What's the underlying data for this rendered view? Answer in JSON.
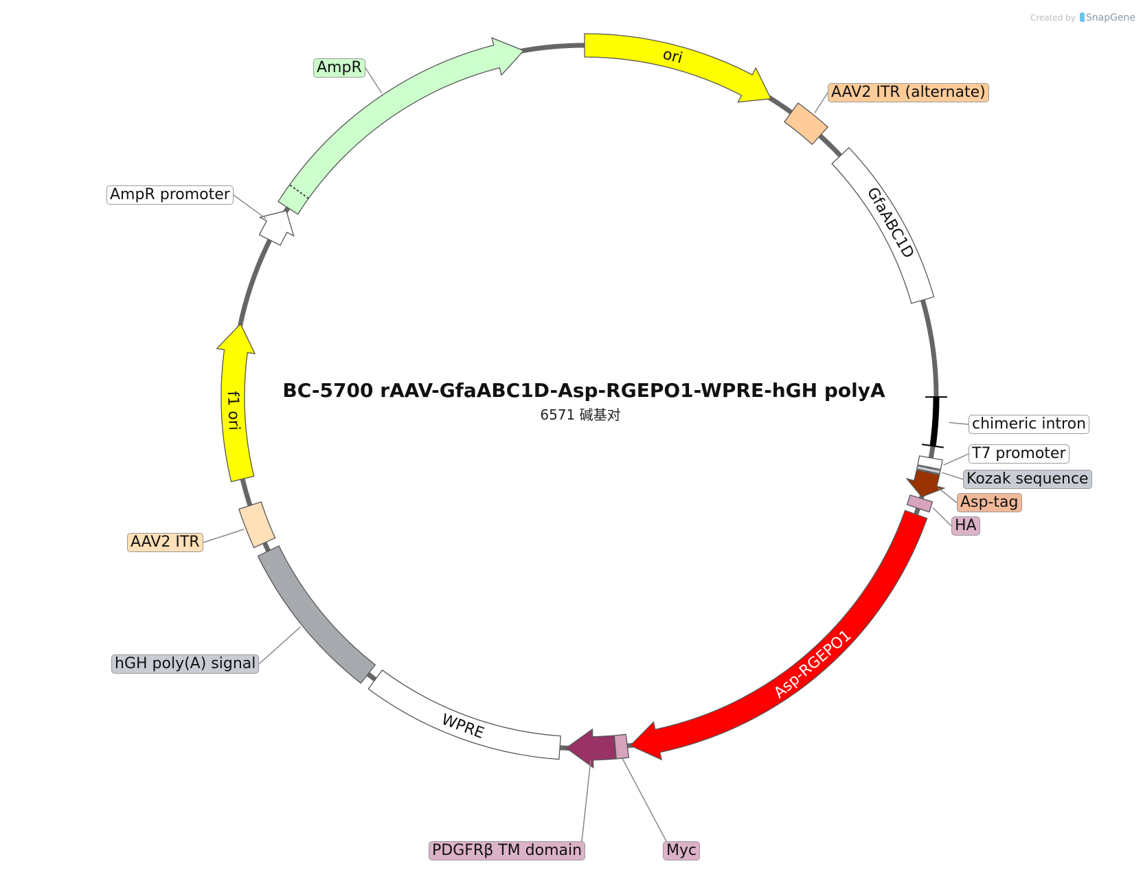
{
  "title": "BC-5700 rAAV-GfaABC1D-Asp-RGEPO1-WPRE-hGH polyA",
  "subtitle": "6571 碱基对",
  "watermark": {
    "prefix": "Created by",
    "brand": "SnapGene"
  },
  "chart_data": {
    "type": "plasmid-map",
    "total_bp": 6571,
    "features": [
      {
        "name": "ori",
        "start": 0,
        "end": 584,
        "color": "#ffff00",
        "arrow": "cw",
        "inner_label": true
      },
      {
        "name": "AAV2 ITR (alternate)",
        "start": 657,
        "end": 767,
        "color": "#ffcc99",
        "arrow": "none"
      },
      {
        "name": "GfaABC1D",
        "start": 852,
        "end": 1351,
        "color": "#ffffff",
        "arrow": "none",
        "inner_label": true
      },
      {
        "name": "chimeric intron",
        "start": 1643,
        "end": 1789,
        "color": "#000000",
        "arrow": "none",
        "thin": true
      },
      {
        "name": "T7 promoter",
        "start": 1825,
        "end": 1853,
        "color": "#ffffff",
        "arrow": "none"
      },
      {
        "name": "Kozak sequence",
        "start": 1856,
        "end": 1866,
        "color": "#c8ccd4",
        "arrow": "none"
      },
      {
        "name": "Asp-tag",
        "start": 1869,
        "end": 1944,
        "color": "#993300",
        "arrow": "cw"
      },
      {
        "name": "HA",
        "start": 1949,
        "end": 1980,
        "color": "#d7a3bd",
        "arrow": "none"
      },
      {
        "name": "Asp-RGEPO1",
        "start": 1999,
        "end": 3149,
        "color": "#ff0000",
        "arrow": "cw",
        "inner_label": true,
        "text_color": "#ffffff"
      },
      {
        "name": "Myc",
        "start": 3158,
        "end": 3194,
        "color": "#d7a3bd",
        "arrow": "none"
      },
      {
        "name": "PDGFRβ TM domain",
        "start": 3196,
        "end": 3340,
        "color": "#993366",
        "arrow": "cw"
      },
      {
        "name": "WPRE",
        "start": 3359,
        "end": 3952,
        "color": "#ffffff",
        "arrow": "none",
        "inner_label": true
      },
      {
        "name": "hGH poly(A) signal",
        "start": 3979,
        "end": 4454,
        "color": "#a6a9ad",
        "arrow": "none"
      },
      {
        "name": "AAV2 ITR",
        "start": 4481,
        "end": 4600,
        "color": "#ffe0b8",
        "arrow": "none"
      },
      {
        "name": "f1 ori",
        "start": 4682,
        "end": 5147,
        "color": "#ffff00",
        "arrow": "cw",
        "inner_label": true
      },
      {
        "name": "AmpR promoter",
        "start": 5412,
        "end": 5512,
        "color": "#ffffff",
        "arrow": "cw"
      },
      {
        "name": "AmpR",
        "start": 5522,
        "end": 6389,
        "color": "#ccffcc",
        "arrow": "cw"
      }
    ],
    "labels": [
      {
        "feature": "AmpR",
        "text": "AmpR",
        "bg": "#ccffcc"
      },
      {
        "feature": "AmpR promoter",
        "text": "AmpR promoter",
        "bg": "#ffffff"
      },
      {
        "feature": "AAV2 ITR (alternate)",
        "text": "AAV2 ITR (alternate)",
        "bg": "#ffcc99"
      },
      {
        "feature": "chimeric intron",
        "text": "chimeric intron",
        "bg": "#ffffff"
      },
      {
        "feature": "T7 promoter",
        "text": "T7 promoter",
        "bg": "#ffffff"
      },
      {
        "feature": "Kozak sequence",
        "text": "Kozak sequence",
        "bg": "#c8ccd4"
      },
      {
        "feature": "Asp-tag",
        "text": "Asp-tag",
        "bg": "#f2b999"
      },
      {
        "feature": "HA",
        "text": "HA",
        "bg": "#dcb2c8"
      },
      {
        "feature": "Myc",
        "text": "Myc",
        "bg": "#dcb2c8"
      },
      {
        "feature": "PDGFRβ TM domain",
        "text": "PDGFRβ TM domain",
        "bg": "#dcb2c8"
      },
      {
        "feature": "hGH poly(A) signal",
        "text": "hGH poly(A) signal",
        "bg": "#c8ccd4"
      },
      {
        "feature": "AAV2 ITR",
        "text": "AAV2 ITR",
        "bg": "#ffe0b8"
      }
    ]
  }
}
